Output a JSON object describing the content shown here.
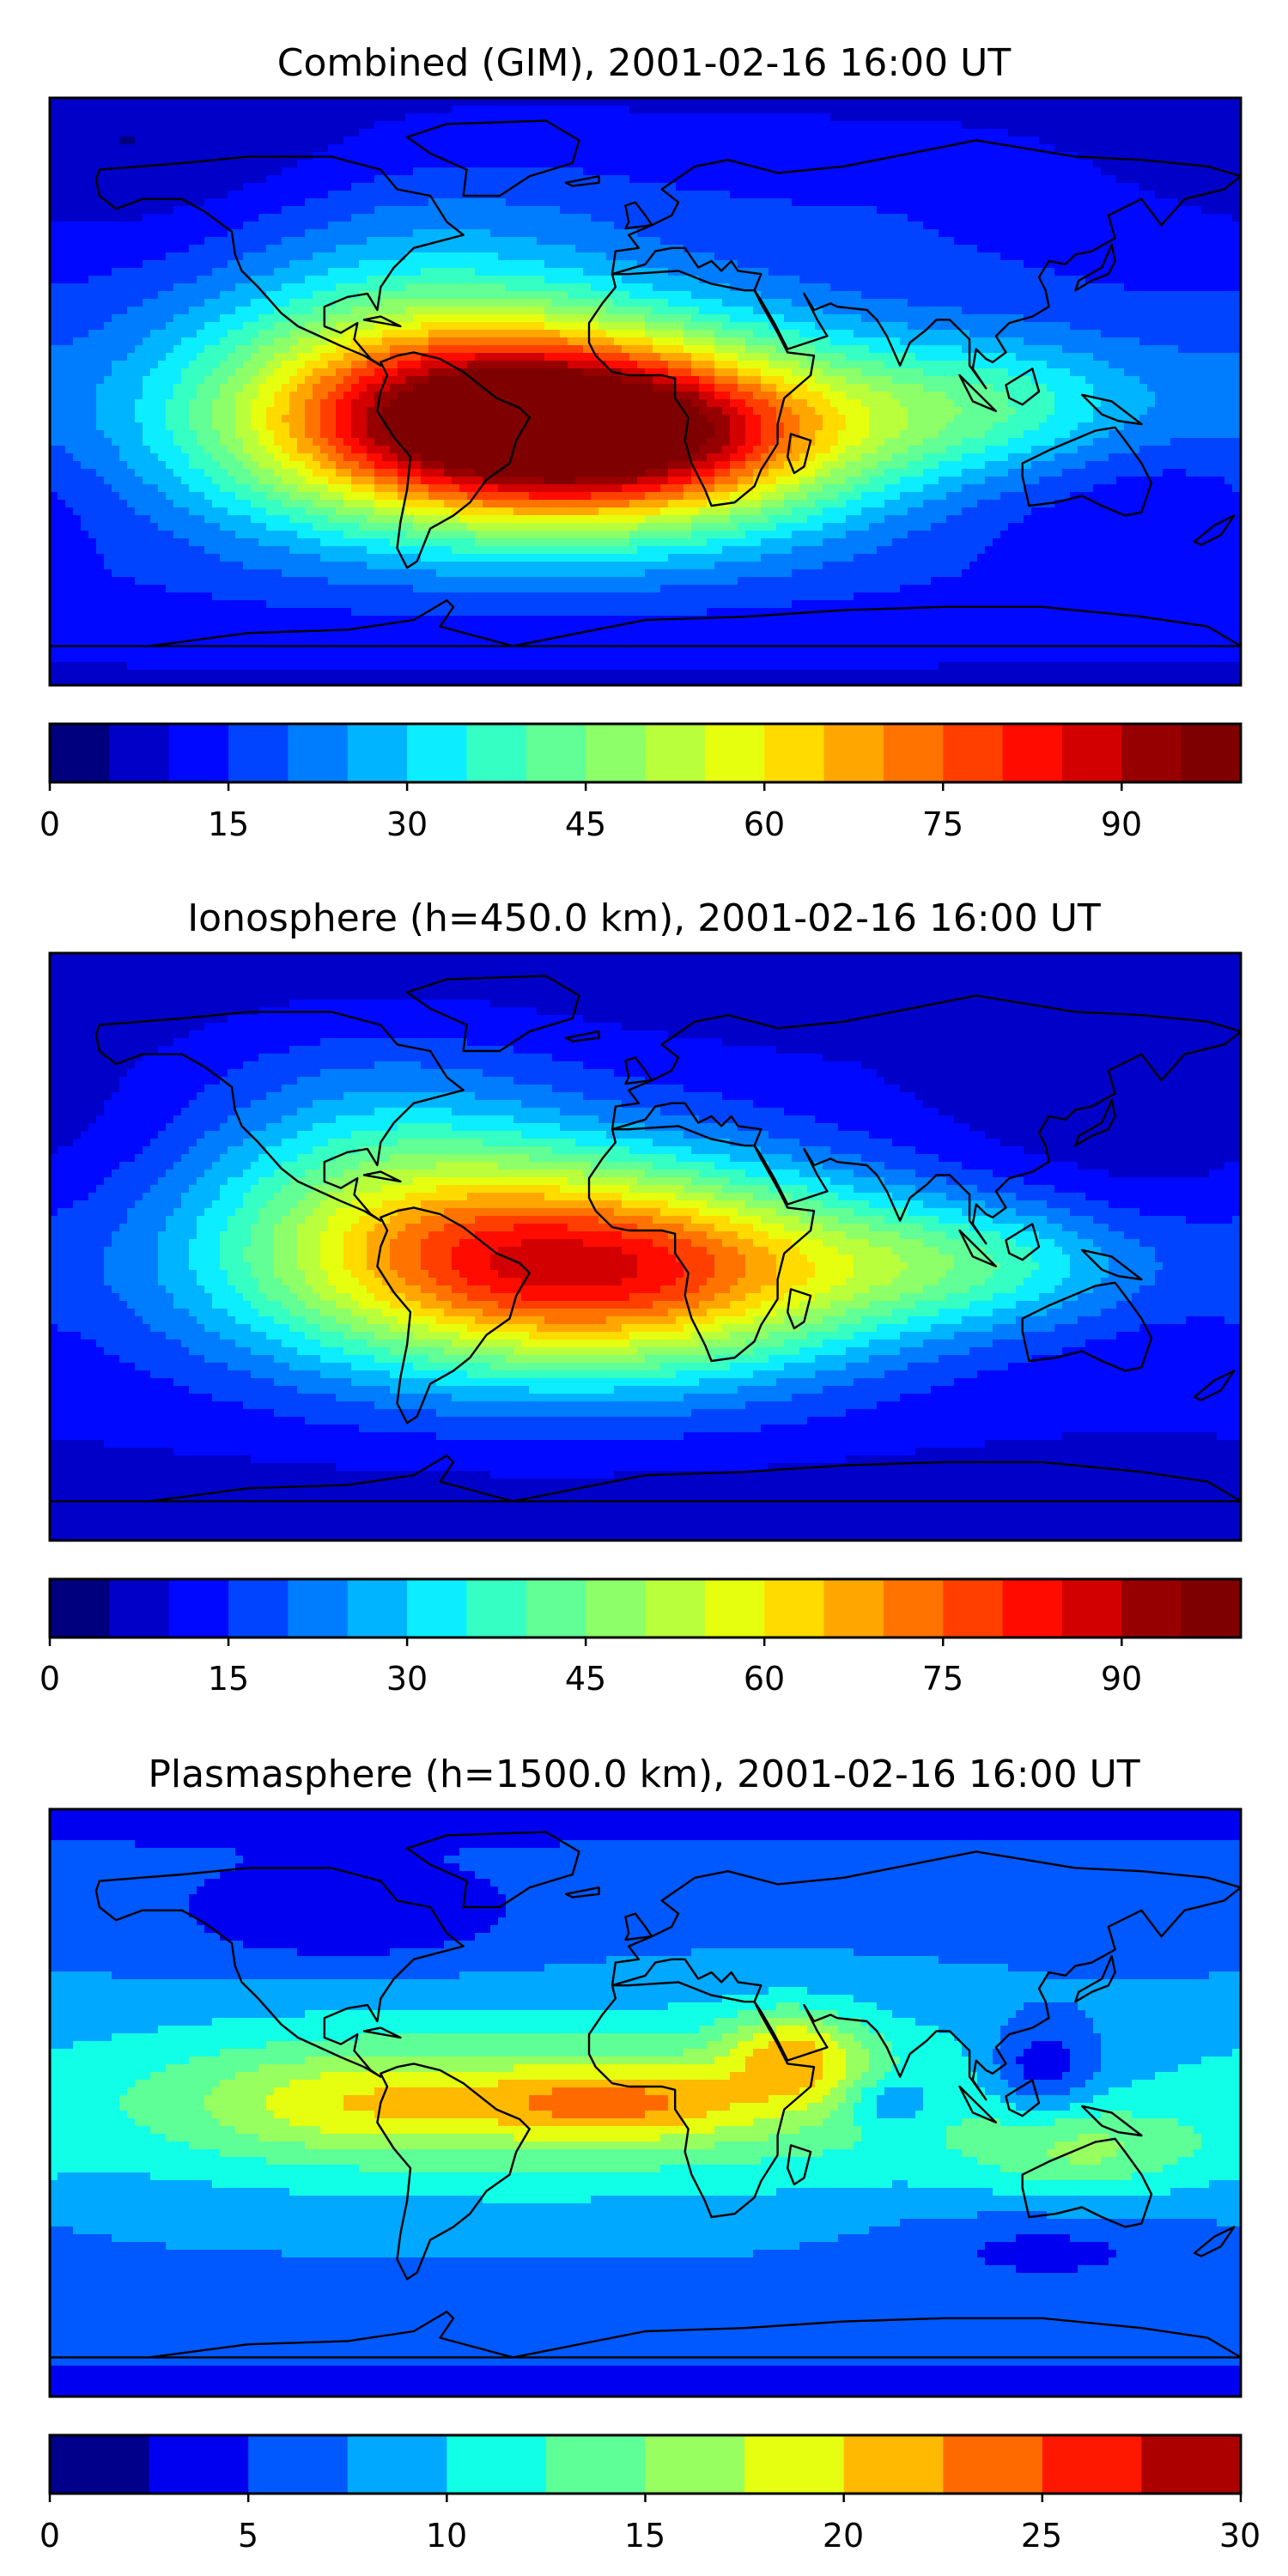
{
  "colors": {
    "jet20": [
      "#00007f",
      "#0000c9",
      "#0008ff",
      "#0044ff",
      "#007cff",
      "#00b4ff",
      "#0ceeff",
      "#35ffc2",
      "#61ff95",
      "#8dff69",
      "#b9ff3c",
      "#e6ff0f",
      "#ffdb00",
      "#ffa700",
      "#ff7300",
      "#ff3f00",
      "#ff0b00",
      "#d20000",
      "#970000",
      "#7f0000"
    ],
    "jet12": [
      "#00008b",
      "#0000f1",
      "#0058ff",
      "#00a8ff",
      "#10ffe6",
      "#5fff97",
      "#97ff5f",
      "#e6ff10",
      "#ffb900",
      "#ff6a00",
      "#ff1800",
      "#ac0000"
    ],
    "coast": "#000000",
    "frame": "#000000"
  },
  "chart_data": [
    {
      "type": "heatmap",
      "title": "Combined (GIM), 2001-02-16 16:00 UT",
      "colorbar": {
        "min": 0,
        "max": 100,
        "step": 5,
        "ticks": [
          0,
          15,
          30,
          45,
          60,
          75,
          90
        ],
        "palette": "jet20"
      },
      "map_extent": {
        "lon": [
          -180,
          180
        ],
        "lat": [
          -90,
          90
        ]
      },
      "background_level": 15,
      "features": [
        {
          "lon": -40,
          "lat": -10,
          "amp": 82,
          "slon": 60,
          "slat": 22
        },
        {
          "lon": 5,
          "lat": -15,
          "amp": 30,
          "slon": 45,
          "slat": 18
        },
        {
          "lon": 105,
          "lat": -5,
          "amp": 22,
          "slon": 40,
          "slat": 15
        },
        {
          "lon": -70,
          "lat": 20,
          "amp": 15,
          "slon": 45,
          "slat": 30
        },
        {
          "lon": -150,
          "lat": 65,
          "amp": -8,
          "slon": 50,
          "slat": 20
        },
        {
          "lon": 150,
          "lat": -30,
          "amp": -6,
          "slon": 40,
          "slat": 20
        }
      ]
    },
    {
      "type": "heatmap",
      "title": "Ionosphere  (h=450.0 km), 2001-02-16 16:00 UT",
      "colorbar": {
        "min": 0,
        "max": 100,
        "step": 5,
        "ticks": [
          0,
          15,
          30,
          45,
          60,
          75,
          90
        ],
        "palette": "jet20"
      },
      "map_extent": {
        "lon": [
          -180,
          180
        ],
        "lat": [
          -90,
          90
        ]
      },
      "background_level": 10,
      "features": [
        {
          "lon": -35,
          "lat": -5,
          "amp": 62,
          "slon": 65,
          "slat": 24
        },
        {
          "lon": 10,
          "lat": -10,
          "amp": 20,
          "slon": 50,
          "slat": 20
        },
        {
          "lon": 100,
          "lat": -5,
          "amp": 22,
          "slon": 40,
          "slat": 14
        },
        {
          "lon": -80,
          "lat": 30,
          "amp": 14,
          "slon": 40,
          "slat": 25
        },
        {
          "lon": 150,
          "lat": 40,
          "amp": -4,
          "slon": 50,
          "slat": 25
        }
      ]
    },
    {
      "type": "heatmap",
      "title": "Plasmasphere (h=1500.0 km), 2001-02-16 16:00 UT",
      "colorbar": {
        "min": 0,
        "max": 30,
        "step": 2.5,
        "ticks": [
          0,
          5,
          10,
          15,
          20,
          25,
          30
        ],
        "palette": "jet12"
      },
      "map_extent": {
        "lon": [
          -180,
          180
        ],
        "lat": [
          -90,
          90
        ]
      },
      "background_level": 7,
      "features": [
        {
          "lon": -30,
          "lat": 0,
          "amp": 9,
          "slon": 120,
          "slat": 20
        },
        {
          "lon": -10,
          "lat": 0,
          "amp": 8,
          "slon": 30,
          "slat": 8
        },
        {
          "lon": 45,
          "lat": 15,
          "amp": 9,
          "slon": 15,
          "slat": 10
        },
        {
          "lon": -90,
          "lat": 0,
          "amp": 5,
          "slon": 30,
          "slat": 10
        },
        {
          "lon": 135,
          "lat": -15,
          "amp": 6,
          "slon": 25,
          "slat": 10
        },
        {
          "lon": 120,
          "lat": 10,
          "amp": -7,
          "slon": 12,
          "slat": 10
        },
        {
          "lon": 75,
          "lat": 0,
          "amp": -5,
          "slon": 10,
          "slat": 6
        },
        {
          "lon": -90,
          "lat": 55,
          "amp": -4,
          "slon": 40,
          "slat": 10
        },
        {
          "lon": 120,
          "lat": -45,
          "amp": -3,
          "slon": 30,
          "slat": 8
        }
      ]
    }
  ]
}
